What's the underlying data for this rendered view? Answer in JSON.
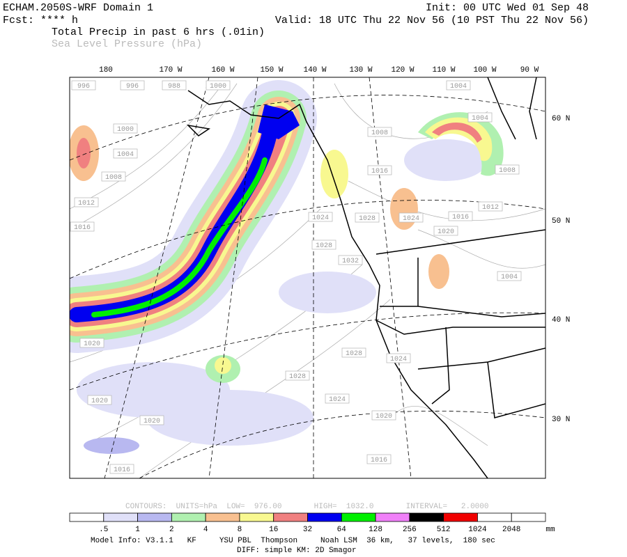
{
  "header": {
    "title": "ECHAM.2050S-WRF Domain 1",
    "init": "Init: 00 UTC Wed 01 Sep 48",
    "fcst": "Fcst: **** h",
    "valid": "Valid: 18 UTC Thu 22 Nov 56 (10 PST Thu 22 Nov 56)",
    "field1": "Total Precip in past 6 hrs (.01in)",
    "field2": "Sea Level Pressure (hPa)"
  },
  "map": {
    "lon_labels": [
      "180",
      "170 W",
      "160 W",
      "150 W",
      "140 W",
      "130 W",
      "120 W",
      "110 W",
      "100 W",
      "90 W"
    ],
    "lat_labels": [
      "60 N",
      "50 N",
      "40 N",
      "30 N"
    ],
    "isobar_labels": [
      "996",
      "996",
      "988",
      "1000",
      "1000",
      "1004",
      "1008",
      "1012",
      "1016",
      "1020",
      "1020",
      "1020",
      "1016",
      "1028",
      "1024",
      "1028",
      "1024",
      "1020",
      "1016",
      "1032",
      "1028",
      "1024",
      "1028",
      "1024",
      "1020",
      "1016",
      "1012",
      "1016",
      "1008",
      "1004",
      "1004",
      "1008",
      "1004"
    ]
  },
  "contour_info": "CONTOURS:  UNITS=hPa  LOW=  976.00       HIGH=  1032.0       INTERVAL=   2.0000",
  "colorbar": {
    "colors": [
      "#ffffff",
      "#e0e0f8",
      "#b8b8f0",
      "#b0f0b0",
      "#f8c090",
      "#f8f890",
      "#f08080",
      "#0000f0",
      "#00f000",
      "#f080f8",
      "#000000",
      "#f00000",
      "#ffffff",
      "#ffffff"
    ],
    "labels": [
      ".5",
      "1",
      "2",
      "4",
      "8",
      "16",
      "32",
      "64",
      "128",
      "256",
      "512",
      "1024",
      "2048"
    ],
    "unit": "mm"
  },
  "footer": {
    "line1": "Model Info: V3.1.1   KF     YSU PBL  Thompson     Noah LSM  36 km,   37 levels,  180 sec",
    "line2": "DIFF: simple KM: 2D Smagor"
  }
}
